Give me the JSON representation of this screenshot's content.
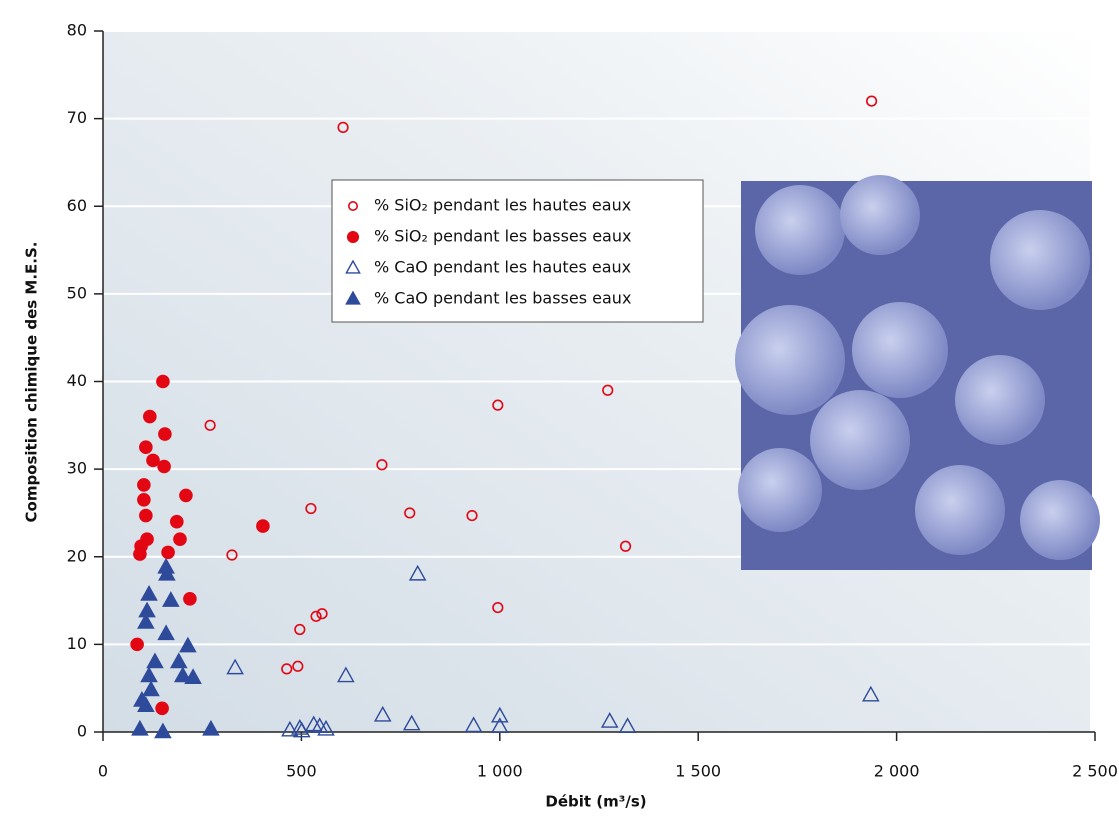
{
  "chart_data": {
    "type": "scatter",
    "x_label": "Débit (m³/s)",
    "y_label": "Composition chimique des M.E.S.",
    "xlim": [
      0,
      2500
    ],
    "ylim": [
      0,
      80
    ],
    "xticks": [
      0,
      500,
      {
        "value": 1000,
        "label": "1 000"
      },
      {
        "value": 1500,
        "label": "1 500"
      },
      {
        "value": 2000,
        "label": "2 000"
      },
      {
        "value": 2500,
        "label": "2 500"
      }
    ],
    "yticks": [
      0,
      10,
      20,
      30,
      40,
      50,
      60,
      70,
      80
    ],
    "grid": true,
    "legend": "upper center",
    "series": [
      {
        "name": "% SiO₂ pendant les hautes eaux",
        "color": "#e30613",
        "marker": "circle",
        "filled": false,
        "x": [
          1937,
          605,
          1272,
          995,
          1317,
          703,
          773,
          930,
          524,
          995,
          552,
          537,
          496,
          491,
          463,
          325,
          270
        ],
        "y": [
          72,
          69,
          39,
          37.3,
          21.2,
          30.5,
          25,
          24.7,
          25.5,
          14.2,
          13.5,
          13.2,
          11.7,
          7.5,
          7.2,
          20.2,
          35
        ]
      },
      {
        "name": "% SiO₂ pendant les basses eaux",
        "color": "#e30613",
        "marker": "circle",
        "filled": true,
        "x": [
          151,
          118,
          156,
          108,
          126,
          154,
          103,
          103,
          108,
          111,
          96,
          93,
          86,
          149,
          209,
          186,
          194,
          164,
          219,
          403
        ],
        "y": [
          40,
          36,
          34,
          32.5,
          31,
          30.3,
          28.2,
          26.5,
          24.7,
          22,
          21.2,
          20.3,
          10,
          2.7,
          27,
          24,
          22,
          20.5,
          15.2,
          23.5
        ]
      },
      {
        "name": "% CaO pendant les hautes eaux",
        "color": "#2e4a9a",
        "marker": "triangle",
        "filled": false,
        "x": [
          1935,
          793,
          333,
          612,
          705,
          778,
          934,
          1000,
          1000,
          1277,
          1322,
          471,
          496,
          501,
          531,
          546,
          562
        ],
        "y": [
          4.2,
          18,
          7.3,
          6.4,
          1.9,
          0.9,
          0.7,
          1.8,
          0.6,
          1.2,
          0.6,
          0.2,
          0.4,
          0.1,
          0.8,
          0.6,
          0.3
        ]
      },
      {
        "name": "% CaO pendant les basses eaux",
        "color": "#2e4a9a",
        "marker": "triangle",
        "filled": true,
        "x": [
          159,
          161,
          116,
          171,
          111,
          108,
          159,
          214,
          131,
          191,
          116,
          201,
          227,
          121,
          98,
          108,
          93,
          151,
          272
        ],
        "y": [
          18.8,
          18,
          15.7,
          15,
          13.8,
          12.5,
          11.2,
          9.8,
          8,
          8,
          6.4,
          6.4,
          6.2,
          4.8,
          3.6,
          3,
          0.3,
          0,
          0.3
        ]
      }
    ]
  }
}
